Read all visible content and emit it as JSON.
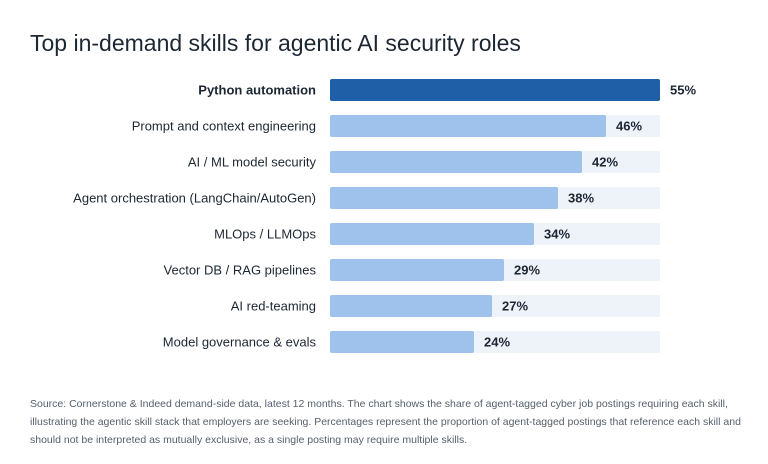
{
  "chart_data": {
    "type": "bar",
    "orientation": "horizontal",
    "title": "Top in-demand skills for agentic AI security roles",
    "categories": [
      "Python automation",
      "Prompt and context engineering",
      "AI / ML model security",
      "Agent orchestration (LangChain/AutoGen)",
      "MLOps / LLMOps",
      "Vector DB / RAG pipelines",
      "AI red-teaming",
      "Model governance & evals"
    ],
    "values": [
      55,
      46,
      42,
      38,
      34,
      29,
      27,
      24
    ],
    "value_labels": [
      "55%",
      "46%",
      "42%",
      "38%",
      "34%",
      "29%",
      "27%",
      "24%"
    ],
    "xlim": [
      0,
      55
    ],
    "highlighted_index": 0,
    "grid": false,
    "colors": {
      "highlight": "#1f5fa8",
      "bar": "#9fc2ec",
      "track": "#eef2f9",
      "label": "#1c2733"
    }
  },
  "footnote": "Source: Cornerstone & Indeed demand-side data, latest 12 months. The chart shows the share of agent-tagged cyber job postings requiring each skill, illustrating the agentic skill stack that employers are seeking. Percentages represent the proportion of agent-tagged postings that reference each skill and should not be interpreted as mutually exclusive, as a single posting may require multiple skills."
}
